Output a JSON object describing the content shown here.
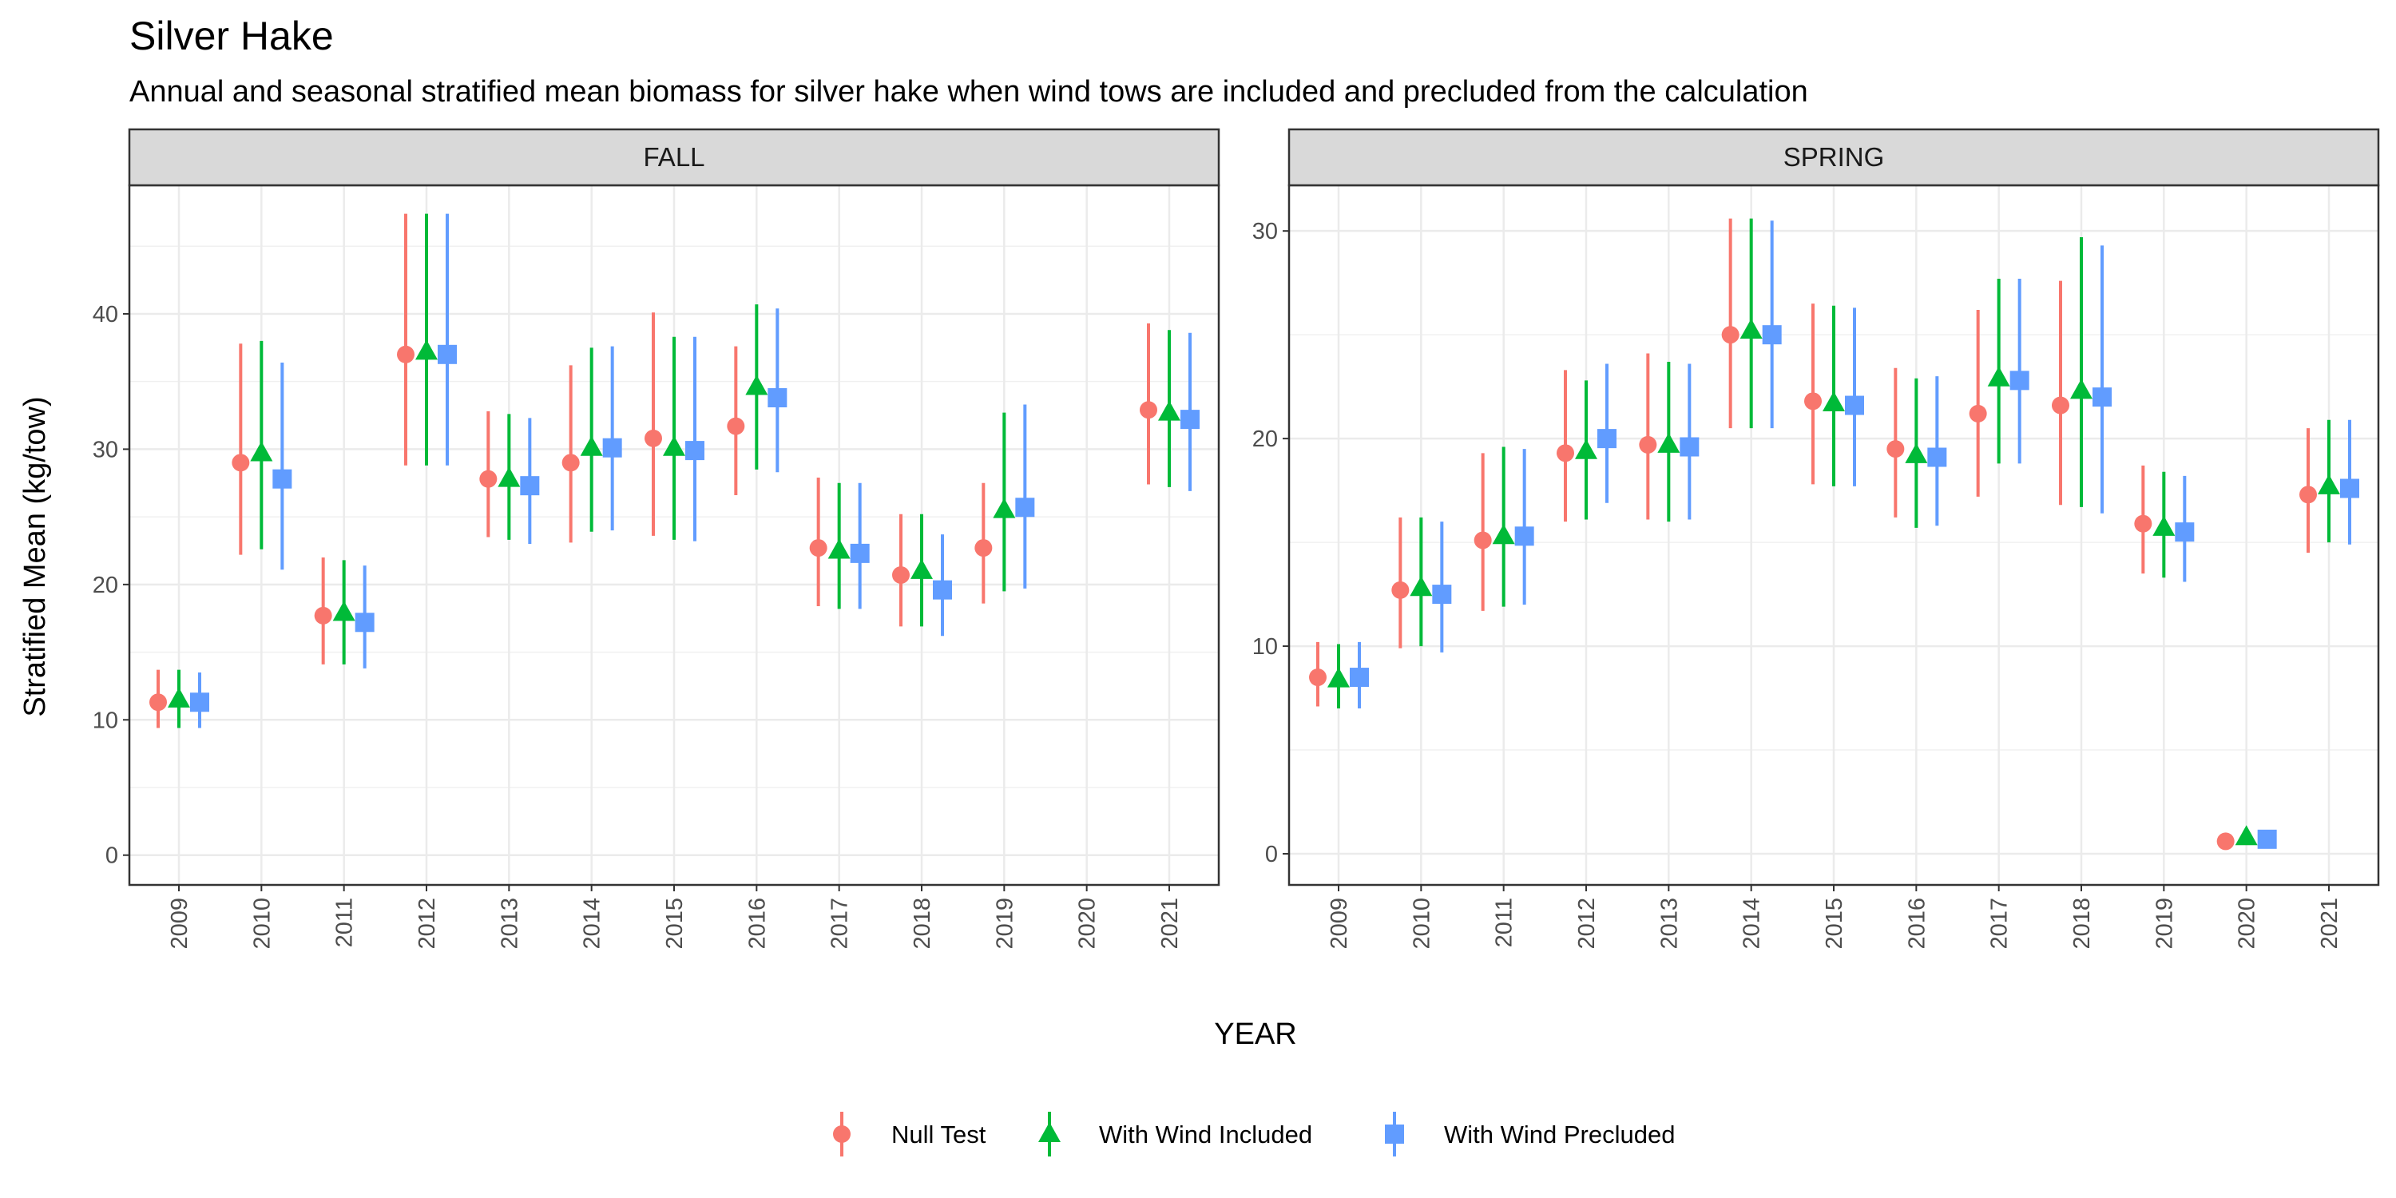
{
  "chart_data": {
    "type": "scatter",
    "title": "Silver Hake",
    "subtitle": "Annual and seasonal stratified mean biomass for silver hake when wind tows are included and precluded from the calculation",
    "xlabel": "YEAR",
    "ylabel": "Stratified Mean (kg/tow)",
    "x": [
      "2009",
      "2010",
      "2011",
      "2012",
      "2013",
      "2014",
      "2015",
      "2016",
      "2017",
      "2018",
      "2019",
      "2020",
      "2021"
    ],
    "legend_position": "bottom",
    "grid": true,
    "error_bars": true,
    "series_styles": [
      {
        "name": "Null Test",
        "color": "#F8766D",
        "shape": "circle"
      },
      {
        "name": "With Wind Included",
        "color": "#00BA38",
        "shape": "triangle"
      },
      {
        "name": "With Wind Precluded",
        "color": "#619CFF",
        "shape": "square"
      }
    ],
    "panels": [
      {
        "name": "FALL",
        "ylim": [
          -2.2,
          49.5
        ],
        "yticks": [
          0,
          10,
          20,
          30,
          40
        ],
        "series": [
          {
            "name": "Null Test",
            "values": [
              {
                "x": "2009",
                "y": 11.3,
                "lo": 9.4,
                "hi": 13.7
              },
              {
                "x": "2010",
                "y": 29.0,
                "lo": 22.2,
                "hi": 37.8
              },
              {
                "x": "2011",
                "y": 17.7,
                "lo": 14.1,
                "hi": 22.0
              },
              {
                "x": "2012",
                "y": 37.0,
                "lo": 28.8,
                "hi": 47.4
              },
              {
                "x": "2013",
                "y": 27.8,
                "lo": 23.5,
                "hi": 32.8
              },
              {
                "x": "2014",
                "y": 29.0,
                "lo": 23.1,
                "hi": 36.2
              },
              {
                "x": "2015",
                "y": 30.8,
                "lo": 23.6,
                "hi": 40.1
              },
              {
                "x": "2016",
                "y": 31.7,
                "lo": 26.6,
                "hi": 37.6
              },
              {
                "x": "2017",
                "y": 22.7,
                "lo": 18.4,
                "hi": 27.9
              },
              {
                "x": "2018",
                "y": 20.7,
                "lo": 16.9,
                "hi": 25.2
              },
              {
                "x": "2019",
                "y": 22.7,
                "lo": 18.6,
                "hi": 27.5
              },
              {
                "x": "2021",
                "y": 32.9,
                "lo": 27.4,
                "hi": 39.3
              }
            ]
          },
          {
            "name": "With Wind Included",
            "values": [
              {
                "x": "2009",
                "y": 11.5,
                "lo": 9.4,
                "hi": 13.7
              },
              {
                "x": "2010",
                "y": 29.7,
                "lo": 22.6,
                "hi": 38.0
              },
              {
                "x": "2011",
                "y": 17.9,
                "lo": 14.1,
                "hi": 21.8
              },
              {
                "x": "2012",
                "y": 37.2,
                "lo": 28.8,
                "hi": 47.4
              },
              {
                "x": "2013",
                "y": 27.8,
                "lo": 23.3,
                "hi": 32.6
              },
              {
                "x": "2014",
                "y": 30.1,
                "lo": 23.9,
                "hi": 37.5
              },
              {
                "x": "2015",
                "y": 30.1,
                "lo": 23.3,
                "hi": 38.3
              },
              {
                "x": "2016",
                "y": 34.6,
                "lo": 28.5,
                "hi": 40.7
              },
              {
                "x": "2017",
                "y": 22.5,
                "lo": 18.2,
                "hi": 27.5
              },
              {
                "x": "2018",
                "y": 21.0,
                "lo": 16.9,
                "hi": 25.2
              },
              {
                "x": "2019",
                "y": 25.5,
                "lo": 19.5,
                "hi": 32.7
              },
              {
                "x": "2021",
                "y": 32.7,
                "lo": 27.2,
                "hi": 38.8
              }
            ]
          },
          {
            "name": "With Wind Precluded",
            "values": [
              {
                "x": "2009",
                "y": 11.3,
                "lo": 9.4,
                "hi": 13.5
              },
              {
                "x": "2010",
                "y": 27.8,
                "lo": 21.1,
                "hi": 36.4
              },
              {
                "x": "2011",
                "y": 17.2,
                "lo": 13.8,
                "hi": 21.4
              },
              {
                "x": "2012",
                "y": 37.0,
                "lo": 28.8,
                "hi": 47.4
              },
              {
                "x": "2013",
                "y": 27.3,
                "lo": 23.0,
                "hi": 32.3
              },
              {
                "x": "2014",
                "y": 30.1,
                "lo": 24.0,
                "hi": 37.6
              },
              {
                "x": "2015",
                "y": 29.9,
                "lo": 23.2,
                "hi": 38.3
              },
              {
                "x": "2016",
                "y": 33.8,
                "lo": 28.3,
                "hi": 40.4
              },
              {
                "x": "2017",
                "y": 22.3,
                "lo": 18.2,
                "hi": 27.5
              },
              {
                "x": "2018",
                "y": 19.6,
                "lo": 16.2,
                "hi": 23.7
              },
              {
                "x": "2019",
                "y": 25.7,
                "lo": 19.7,
                "hi": 33.3
              },
              {
                "x": "2021",
                "y": 32.2,
                "lo": 26.9,
                "hi": 38.6
              }
            ]
          }
        ]
      },
      {
        "name": "SPRING",
        "ylim": [
          -1.5,
          32.2
        ],
        "yticks": [
          0,
          10,
          20,
          30
        ],
        "series": [
          {
            "name": "Null Test",
            "values": [
              {
                "x": "2009",
                "y": 8.5,
                "lo": 7.1,
                "hi": 10.2
              },
              {
                "x": "2010",
                "y": 12.7,
                "lo": 9.9,
                "hi": 16.2
              },
              {
                "x": "2011",
                "y": 15.1,
                "lo": 11.7,
                "hi": 19.3
              },
              {
                "x": "2012",
                "y": 19.3,
                "lo": 16.0,
                "hi": 23.3
              },
              {
                "x": "2013",
                "y": 19.7,
                "lo": 16.1,
                "hi": 24.1
              },
              {
                "x": "2014",
                "y": 25.0,
                "lo": 20.5,
                "hi": 30.6
              },
              {
                "x": "2015",
                "y": 21.8,
                "lo": 17.8,
                "hi": 26.5
              },
              {
                "x": "2016",
                "y": 19.5,
                "lo": 16.2,
                "hi": 23.4
              },
              {
                "x": "2017",
                "y": 21.2,
                "lo": 17.2,
                "hi": 26.2
              },
              {
                "x": "2018",
                "y": 21.6,
                "lo": 16.8,
                "hi": 27.6
              },
              {
                "x": "2019",
                "y": 15.9,
                "lo": 13.5,
                "hi": 18.7
              },
              {
                "x": "2020",
                "y": 0.6,
                "lo": 0.5,
                "hi": 0.8
              },
              {
                "x": "2021",
                "y": 17.3,
                "lo": 14.5,
                "hi": 20.5
              }
            ]
          },
          {
            "name": "With Wind Included",
            "values": [
              {
                "x": "2009",
                "y": 8.4,
                "lo": 7.0,
                "hi": 10.1
              },
              {
                "x": "2010",
                "y": 12.8,
                "lo": 10.0,
                "hi": 16.2
              },
              {
                "x": "2011",
                "y": 15.3,
                "lo": 11.9,
                "hi": 19.6
              },
              {
                "x": "2012",
                "y": 19.4,
                "lo": 16.1,
                "hi": 22.8
              },
              {
                "x": "2013",
                "y": 19.7,
                "lo": 16.0,
                "hi": 23.7
              },
              {
                "x": "2014",
                "y": 25.2,
                "lo": 20.5,
                "hi": 30.6
              },
              {
                "x": "2015",
                "y": 21.7,
                "lo": 17.7,
                "hi": 26.4
              },
              {
                "x": "2016",
                "y": 19.2,
                "lo": 15.7,
                "hi": 22.9
              },
              {
                "x": "2017",
                "y": 22.9,
                "lo": 18.8,
                "hi": 27.7
              },
              {
                "x": "2018",
                "y": 22.3,
                "lo": 16.7,
                "hi": 29.7
              },
              {
                "x": "2019",
                "y": 15.7,
                "lo": 13.3,
                "hi": 18.4
              },
              {
                "x": "2020",
                "y": 0.8,
                "lo": 0.6,
                "hi": 0.9
              },
              {
                "x": "2021",
                "y": 17.7,
                "lo": 15.0,
                "hi": 20.9
              }
            ]
          },
          {
            "name": "With Wind Precluded",
            "values": [
              {
                "x": "2009",
                "y": 8.5,
                "lo": 7.0,
                "hi": 10.2
              },
              {
                "x": "2010",
                "y": 12.5,
                "lo": 9.7,
                "hi": 16.0
              },
              {
                "x": "2011",
                "y": 15.3,
                "lo": 12.0,
                "hi": 19.5
              },
              {
                "x": "2012",
                "y": 20.0,
                "lo": 16.9,
                "hi": 23.6
              },
              {
                "x": "2013",
                "y": 19.6,
                "lo": 16.1,
                "hi": 23.6
              },
              {
                "x": "2014",
                "y": 25.0,
                "lo": 20.5,
                "hi": 30.5
              },
              {
                "x": "2015",
                "y": 21.6,
                "lo": 17.7,
                "hi": 26.3
              },
              {
                "x": "2016",
                "y": 19.1,
                "lo": 15.8,
                "hi": 23.0
              },
              {
                "x": "2017",
                "y": 22.8,
                "lo": 18.8,
                "hi": 27.7
              },
              {
                "x": "2018",
                "y": 22.0,
                "lo": 16.4,
                "hi": 29.3
              },
              {
                "x": "2019",
                "y": 15.5,
                "lo": 13.1,
                "hi": 18.2
              },
              {
                "x": "2020",
                "y": 0.7,
                "lo": 0.6,
                "hi": 0.9
              },
              {
                "x": "2021",
                "y": 17.6,
                "lo": 14.9,
                "hi": 20.9
              }
            ]
          }
        ]
      }
    ]
  }
}
